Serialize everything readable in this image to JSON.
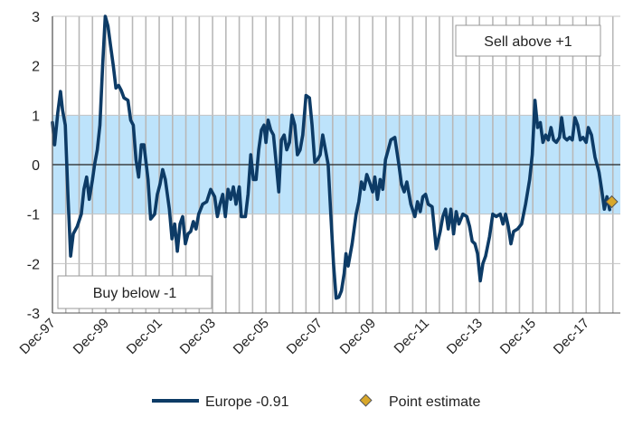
{
  "chart_data": {
    "type": "line",
    "title": "",
    "xlabel": "",
    "ylabel": "",
    "ylim": [
      -3,
      3
    ],
    "yticks": [
      3,
      2,
      1,
      0,
      -1,
      -2,
      -3
    ],
    "x_tick_labels": [
      "Dec-97",
      "Dec-99",
      "Dec-01",
      "Dec-03",
      "Dec-05",
      "Dec-07",
      "Dec-09",
      "Dec-11",
      "Dec-13",
      "Dec-15",
      "Dec-17"
    ],
    "x_tick_years": [
      1997.92,
      1999.92,
      2001.92,
      2003.92,
      2005.92,
      2007.92,
      2009.92,
      2011.92,
      2013.92,
      2015.92,
      2017.92
    ],
    "x_range": [
      1997.92,
      2019.2
    ],
    "vertical_gridlines": "every 6 months",
    "band": {
      "from": -1,
      "to": 1,
      "color": "#bde3fb"
    },
    "series": [
      {
        "name": "Europe -0.91",
        "color": "#0d3b66",
        "points": [
          [
            1997.92,
            0.85
          ],
          [
            1998.0,
            0.4
          ],
          [
            1998.12,
            1.05
          ],
          [
            1998.22,
            1.48
          ],
          [
            1998.3,
            1.1
          ],
          [
            1998.4,
            0.8
          ],
          [
            1998.5,
            -0.6
          ],
          [
            1998.6,
            -1.85
          ],
          [
            1998.7,
            -1.4
          ],
          [
            1998.85,
            -1.25
          ],
          [
            1999.0,
            -1.0
          ],
          [
            1999.1,
            -0.5
          ],
          [
            1999.2,
            -0.25
          ],
          [
            1999.3,
            -0.7
          ],
          [
            1999.42,
            -0.3
          ],
          [
            1999.5,
            0.0
          ],
          [
            1999.6,
            0.3
          ],
          [
            1999.7,
            0.8
          ],
          [
            1999.8,
            2.0
          ],
          [
            1999.9,
            3.0
          ],
          [
            2000.0,
            2.8
          ],
          [
            2000.1,
            2.4
          ],
          [
            2000.2,
            2.0
          ],
          [
            2000.3,
            1.55
          ],
          [
            2000.4,
            1.6
          ],
          [
            2000.5,
            1.5
          ],
          [
            2000.6,
            1.35
          ],
          [
            2000.75,
            1.3
          ],
          [
            2000.85,
            0.9
          ],
          [
            2000.95,
            0.8
          ],
          [
            2001.05,
            0.1
          ],
          [
            2001.15,
            -0.25
          ],
          [
            2001.25,
            0.4
          ],
          [
            2001.35,
            0.4
          ],
          [
            2001.5,
            -0.3
          ],
          [
            2001.6,
            -1.1
          ],
          [
            2001.75,
            -1.0
          ],
          [
            2001.85,
            -0.6
          ],
          [
            2001.95,
            -0.4
          ],
          [
            2002.05,
            -0.1
          ],
          [
            2002.15,
            -0.3
          ],
          [
            2002.3,
            -0.9
          ],
          [
            2002.4,
            -1.5
          ],
          [
            2002.5,
            -1.2
          ],
          [
            2002.6,
            -1.75
          ],
          [
            2002.7,
            -1.2
          ],
          [
            2002.8,
            -1.05
          ],
          [
            2002.9,
            -1.6
          ],
          [
            2003.0,
            -1.4
          ],
          [
            2003.1,
            -1.35
          ],
          [
            2003.2,
            -1.15
          ],
          [
            2003.3,
            -1.3
          ],
          [
            2003.4,
            -1.0
          ],
          [
            2003.55,
            -0.8
          ],
          [
            2003.7,
            -0.75
          ],
          [
            2003.85,
            -0.5
          ],
          [
            2004.0,
            -0.65
          ],
          [
            2004.1,
            -1.05
          ],
          [
            2004.2,
            -0.8
          ],
          [
            2004.3,
            -0.6
          ],
          [
            2004.4,
            -1.05
          ],
          [
            2004.5,
            -0.5
          ],
          [
            2004.6,
            -0.7
          ],
          [
            2004.7,
            -0.45
          ],
          [
            2004.8,
            -0.8
          ],
          [
            2004.92,
            -0.45
          ],
          [
            2005.0,
            -1.05
          ],
          [
            2005.15,
            -1.05
          ],
          [
            2005.25,
            -0.6
          ],
          [
            2005.35,
            0.2
          ],
          [
            2005.45,
            -0.3
          ],
          [
            2005.55,
            -0.3
          ],
          [
            2005.65,
            0.3
          ],
          [
            2005.75,
            0.7
          ],
          [
            2005.85,
            0.8
          ],
          [
            2005.92,
            0.45
          ],
          [
            2006.0,
            0.9
          ],
          [
            2006.1,
            0.7
          ],
          [
            2006.2,
            0.6
          ],
          [
            2006.3,
            0.05
          ],
          [
            2006.4,
            -0.55
          ],
          [
            2006.5,
            0.5
          ],
          [
            2006.6,
            0.6
          ],
          [
            2006.7,
            0.3
          ],
          [
            2006.8,
            0.45
          ],
          [
            2006.9,
            1.0
          ],
          [
            2007.0,
            0.8
          ],
          [
            2007.1,
            0.2
          ],
          [
            2007.2,
            0.3
          ],
          [
            2007.3,
            0.6
          ],
          [
            2007.42,
            1.4
          ],
          [
            2007.55,
            1.35
          ],
          [
            2007.65,
            0.8
          ],
          [
            2007.75,
            0.05
          ],
          [
            2007.85,
            0.1
          ],
          [
            2007.95,
            0.2
          ],
          [
            2008.05,
            0.6
          ],
          [
            2008.15,
            0.3
          ],
          [
            2008.25,
            0.0
          ],
          [
            2008.35,
            -1.0
          ],
          [
            2008.45,
            -2.0
          ],
          [
            2008.55,
            -2.7
          ],
          [
            2008.65,
            -2.68
          ],
          [
            2008.75,
            -2.55
          ],
          [
            2008.85,
            -2.2
          ],
          [
            2008.92,
            -1.8
          ],
          [
            2009.0,
            -2.05
          ],
          [
            2009.15,
            -1.6
          ],
          [
            2009.3,
            -1.0
          ],
          [
            2009.4,
            -0.75
          ],
          [
            2009.5,
            -0.35
          ],
          [
            2009.6,
            -0.5
          ],
          [
            2009.7,
            -0.2
          ],
          [
            2009.8,
            -0.35
          ],
          [
            2009.92,
            -0.55
          ],
          [
            2010.0,
            -0.25
          ],
          [
            2010.1,
            -0.7
          ],
          [
            2010.2,
            -0.3
          ],
          [
            2010.3,
            -0.5
          ],
          [
            2010.4,
            0.1
          ],
          [
            2010.5,
            0.3
          ],
          [
            2010.6,
            0.5
          ],
          [
            2010.75,
            0.55
          ],
          [
            2010.9,
            0.0
          ],
          [
            2011.0,
            -0.4
          ],
          [
            2011.1,
            -0.55
          ],
          [
            2011.2,
            -0.35
          ],
          [
            2011.35,
            -0.8
          ],
          [
            2011.5,
            -1.05
          ],
          [
            2011.6,
            -0.75
          ],
          [
            2011.7,
            -0.95
          ],
          [
            2011.8,
            -0.65
          ],
          [
            2011.9,
            -0.6
          ],
          [
            2012.0,
            -0.8
          ],
          [
            2012.15,
            -0.85
          ],
          [
            2012.3,
            -1.7
          ],
          [
            2012.45,
            -1.35
          ],
          [
            2012.55,
            -1.05
          ],
          [
            2012.65,
            -0.9
          ],
          [
            2012.75,
            -1.3
          ],
          [
            2012.85,
            -0.9
          ],
          [
            2012.95,
            -1.4
          ],
          [
            2013.05,
            -0.95
          ],
          [
            2013.15,
            -1.2
          ],
          [
            2013.3,
            -1.0
          ],
          [
            2013.45,
            -1.05
          ],
          [
            2013.55,
            -1.25
          ],
          [
            2013.65,
            -1.55
          ],
          [
            2013.75,
            -1.6
          ],
          [
            2013.85,
            -1.8
          ],
          [
            2013.95,
            -2.35
          ],
          [
            2014.05,
            -2.0
          ],
          [
            2014.15,
            -1.85
          ],
          [
            2014.3,
            -1.45
          ],
          [
            2014.42,
            -1.0
          ],
          [
            2014.55,
            -1.05
          ],
          [
            2014.7,
            -1.0
          ],
          [
            2014.8,
            -1.2
          ],
          [
            2014.9,
            -1.0
          ],
          [
            2015.0,
            -1.25
          ],
          [
            2015.1,
            -1.6
          ],
          [
            2015.2,
            -1.35
          ],
          [
            2015.35,
            -1.3
          ],
          [
            2015.5,
            -1.2
          ],
          [
            2015.65,
            -0.8
          ],
          [
            2015.8,
            -0.3
          ],
          [
            2015.9,
            0.2
          ],
          [
            2016.0,
            1.3
          ],
          [
            2016.1,
            0.75
          ],
          [
            2016.2,
            0.85
          ],
          [
            2016.3,
            0.45
          ],
          [
            2016.4,
            0.6
          ],
          [
            2016.5,
            0.5
          ],
          [
            2016.6,
            0.75
          ],
          [
            2016.7,
            0.5
          ],
          [
            2016.8,
            0.45
          ],
          [
            2016.92,
            0.55
          ],
          [
            2017.0,
            0.95
          ],
          [
            2017.1,
            0.55
          ],
          [
            2017.2,
            0.5
          ],
          [
            2017.3,
            0.55
          ],
          [
            2017.4,
            0.5
          ],
          [
            2017.5,
            0.95
          ],
          [
            2017.6,
            0.8
          ],
          [
            2017.7,
            0.5
          ],
          [
            2017.8,
            0.55
          ],
          [
            2017.92,
            0.45
          ],
          [
            2018.0,
            0.75
          ],
          [
            2018.12,
            0.6
          ],
          [
            2018.25,
            0.15
          ],
          [
            2018.4,
            -0.15
          ],
          [
            2018.5,
            -0.5
          ],
          [
            2018.6,
            -0.9
          ],
          [
            2018.7,
            -0.65
          ],
          [
            2018.8,
            -0.91
          ]
        ]
      }
    ],
    "point_estimate": {
      "name": "Point estimate",
      "x": 2018.88,
      "y": -0.75,
      "color": "#d8a72a"
    },
    "annotations": [
      "Sell above +1",
      "Buy below -1"
    ]
  },
  "legend": {
    "series_label": "Europe -0.91",
    "point_label": "Point estimate"
  }
}
